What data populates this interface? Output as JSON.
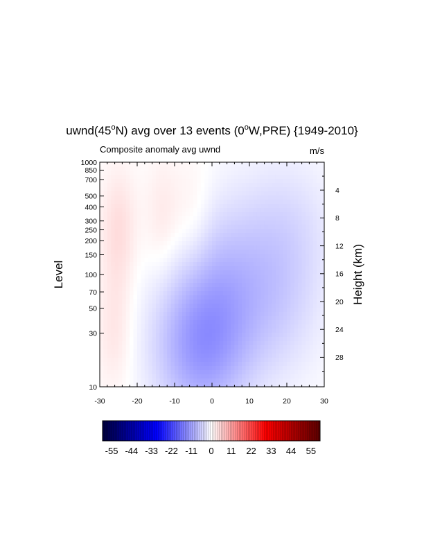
{
  "chart_data": {
    "type": "heatmap",
    "title": {
      "variable": "uwnd(45",
      "lat_sup": "o",
      "lat_rest": "N) avg over 13 events (0",
      "lon_sup": "o",
      "lon_rest": "W,PRE) {1949-2010}"
    },
    "subtitle_left": "Composite anomaly avg uwnd",
    "subtitle_right": "m/s",
    "ylabel_left": "Level",
    "ylabel_right": "Height (km)",
    "x_ticks": [
      "-30",
      "-20",
      "-10",
      "0",
      "10",
      "20",
      "30"
    ],
    "x_values": [
      -30,
      -20,
      -10,
      0,
      10,
      20,
      30
    ],
    "xlim": [
      -30,
      30
    ],
    "y_scale": "log-pressure",
    "ylim": [
      1000,
      10
    ],
    "level_ticks": [
      "10",
      "30",
      "50",
      "70",
      "100",
      "150",
      "200",
      "250",
      "300",
      "400",
      "500",
      "700",
      "850",
      "1000"
    ],
    "level_values": [
      10,
      30,
      50,
      70,
      100,
      150,
      200,
      250,
      300,
      400,
      500,
      700,
      850,
      1000
    ],
    "height_ticks": [
      "28",
      "24",
      "20",
      "16",
      "12",
      "8",
      "4"
    ],
    "height_values": [
      28,
      24,
      20,
      16,
      12,
      8,
      4
    ],
    "colorbar": {
      "min": -60,
      "max": 60,
      "labels": [
        "-55",
        "-44",
        "-33",
        "-22",
        "-11",
        "0",
        "11",
        "22",
        "33",
        "44",
        "55"
      ],
      "label_values": [
        -55,
        -44,
        -33,
        -22,
        -11,
        0,
        11,
        22,
        33,
        44,
        55
      ],
      "colors": [
        "#00003c",
        "#0000ff",
        "#ffffff",
        "#ff0000",
        "#5a0000"
      ]
    },
    "grid": false,
    "anomaly_features": [
      {
        "kind": "negative",
        "lon": -3,
        "level": 18,
        "value": -8
      },
      {
        "kind": "negative",
        "lon": -2,
        "level": 40,
        "value": -5
      },
      {
        "kind": "negative",
        "lon": 4,
        "level": 120,
        "value": -4
      },
      {
        "kind": "negative",
        "lon": 17,
        "level": 45,
        "value": -4
      },
      {
        "kind": "negative",
        "lon": 20,
        "level": 250,
        "value": -4
      },
      {
        "kind": "positive",
        "lon": -26,
        "level": 30,
        "value": 3
      },
      {
        "kind": "positive",
        "lon": -25,
        "level": 250,
        "value": 4
      },
      {
        "kind": "positive",
        "lon": -13,
        "level": 300,
        "value": 3
      },
      {
        "kind": "positive",
        "lon": -5,
        "level": 300,
        "value": 2.5
      }
    ]
  }
}
